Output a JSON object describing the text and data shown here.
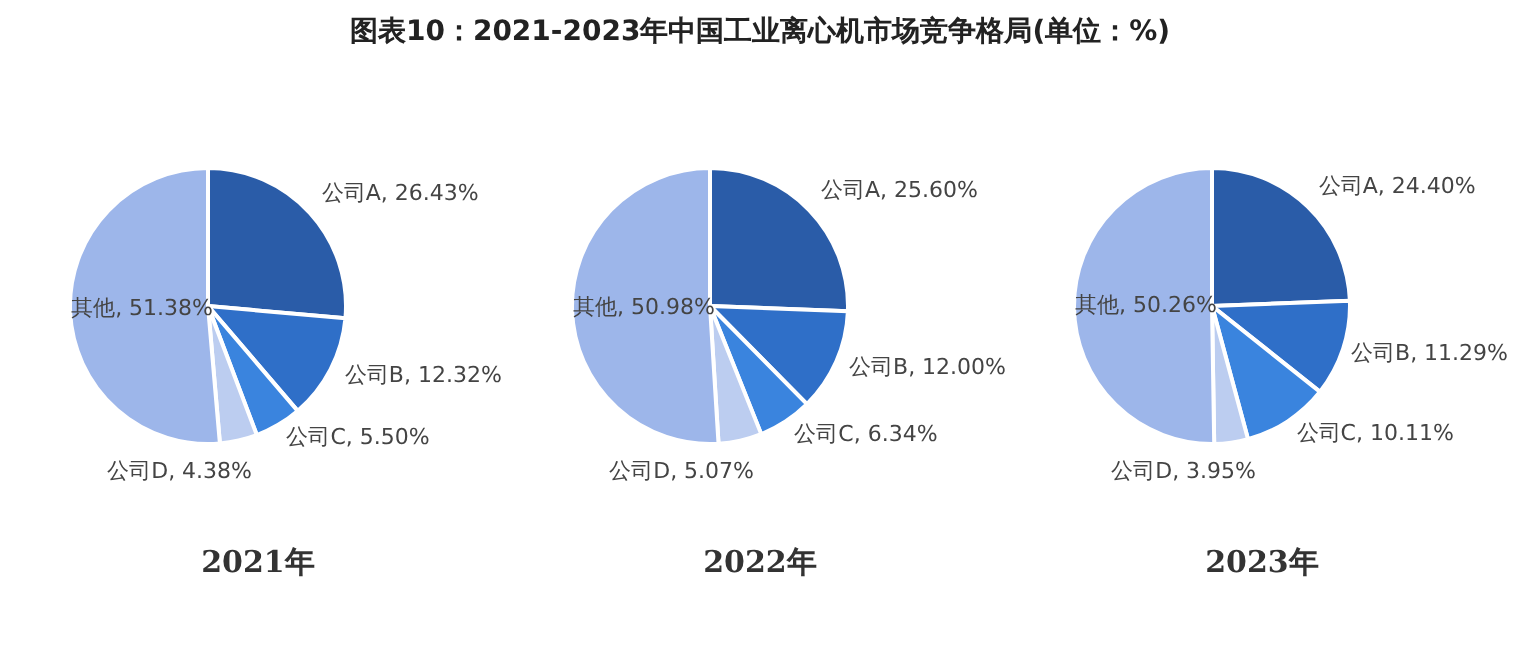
{
  "chart_data": [
    {
      "type": "other",
      "title": "图表10：2021-2023年中国工业离心机市场竞争格局(单位：%)"
    },
    {
      "type": "pie",
      "subtitle": "2021年",
      "categories": [
        "公司A",
        "公司B",
        "公司C",
        "公司D",
        "其他"
      ],
      "values": [
        26.43,
        12.32,
        5.5,
        4.38,
        51.38
      ],
      "value_labels": [
        "26.43%",
        "12.32%",
        "5.50%",
        "4.38%",
        "51.38%"
      ],
      "colors": [
        "#2a5ca8",
        "#2f6fc8",
        "#3a84de",
        "#bccdf0",
        "#9db6ea"
      ]
    },
    {
      "type": "pie",
      "subtitle": "2022年",
      "categories": [
        "公司A",
        "公司B",
        "公司C",
        "公司D",
        "其他"
      ],
      "values": [
        25.6,
        12.0,
        6.34,
        5.07,
        50.98
      ],
      "value_labels": [
        "25.60%",
        "12.00%",
        "6.34%",
        "5.07%",
        "50.98%"
      ],
      "colors": [
        "#2a5ca8",
        "#2f6fc8",
        "#3a84de",
        "#bccdf0",
        "#9db6ea"
      ]
    },
    {
      "type": "pie",
      "subtitle": "2023年",
      "categories": [
        "公司A",
        "公司B",
        "公司C",
        "公司D",
        "其他"
      ],
      "values": [
        24.4,
        11.29,
        10.11,
        3.95,
        50.26
      ],
      "value_labels": [
        "24.40%",
        "11.29%",
        "10.11%",
        "3.95%",
        "50.26%"
      ],
      "colors": [
        "#2a5ca8",
        "#2f6fc8",
        "#3a84de",
        "#bccdf0",
        "#9db6ea"
      ]
    }
  ]
}
